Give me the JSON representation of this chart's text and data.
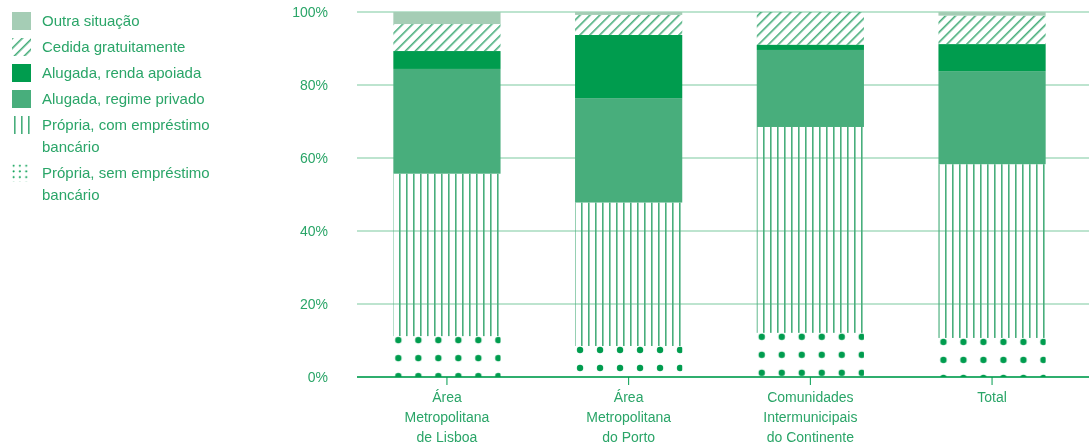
{
  "chart_data": {
    "type": "bar",
    "stacked": true,
    "categories": [
      "Área Metropolitana de Lisboa",
      "Área Metropolitana do Porto",
      "Comunidades Intermunicipais do Continente",
      "Total"
    ],
    "series": [
      {
        "name": "Própria, sem empréstimo bancário",
        "color": "#009c4e",
        "values": [
          11.2,
          8.5,
          12.1,
          10.7
        ]
      },
      {
        "name": "Própria, com empréstimo bancário",
        "color": "#48ae7c",
        "values": [
          44.5,
          39.3,
          56.4,
          47.6
        ]
      },
      {
        "name": "Alugada, regime privado",
        "color": "#48ae7c",
        "values": [
          28.7,
          28.6,
          21.1,
          25.5
        ]
      },
      {
        "name": "Alugada, renda apoiada",
        "color": "#009c4e",
        "values": [
          4.9,
          17.3,
          1.4,
          7.4
        ]
      },
      {
        "name": "Cedida gratuitamente",
        "color": "#48ae7c",
        "values": [
          7.4,
          5.5,
          9.0,
          7.8
        ]
      },
      {
        "name": "Outra situação",
        "color": "#a5cdb5",
        "values": [
          3.3,
          0.8,
          0,
          1.0
        ]
      }
    ],
    "ylim": [
      0,
      100
    ],
    "yticks": [
      {
        "value": 0,
        "label": "0%"
      },
      {
        "value": 20,
        "label": "20%"
      },
      {
        "value": 40,
        "label": "40%"
      },
      {
        "value": 60,
        "label": "60%"
      },
      {
        "value": 80,
        "label": "80%"
      },
      {
        "value": 100,
        "label": "100%"
      }
    ],
    "grid": "y",
    "legend": "left"
  }
}
